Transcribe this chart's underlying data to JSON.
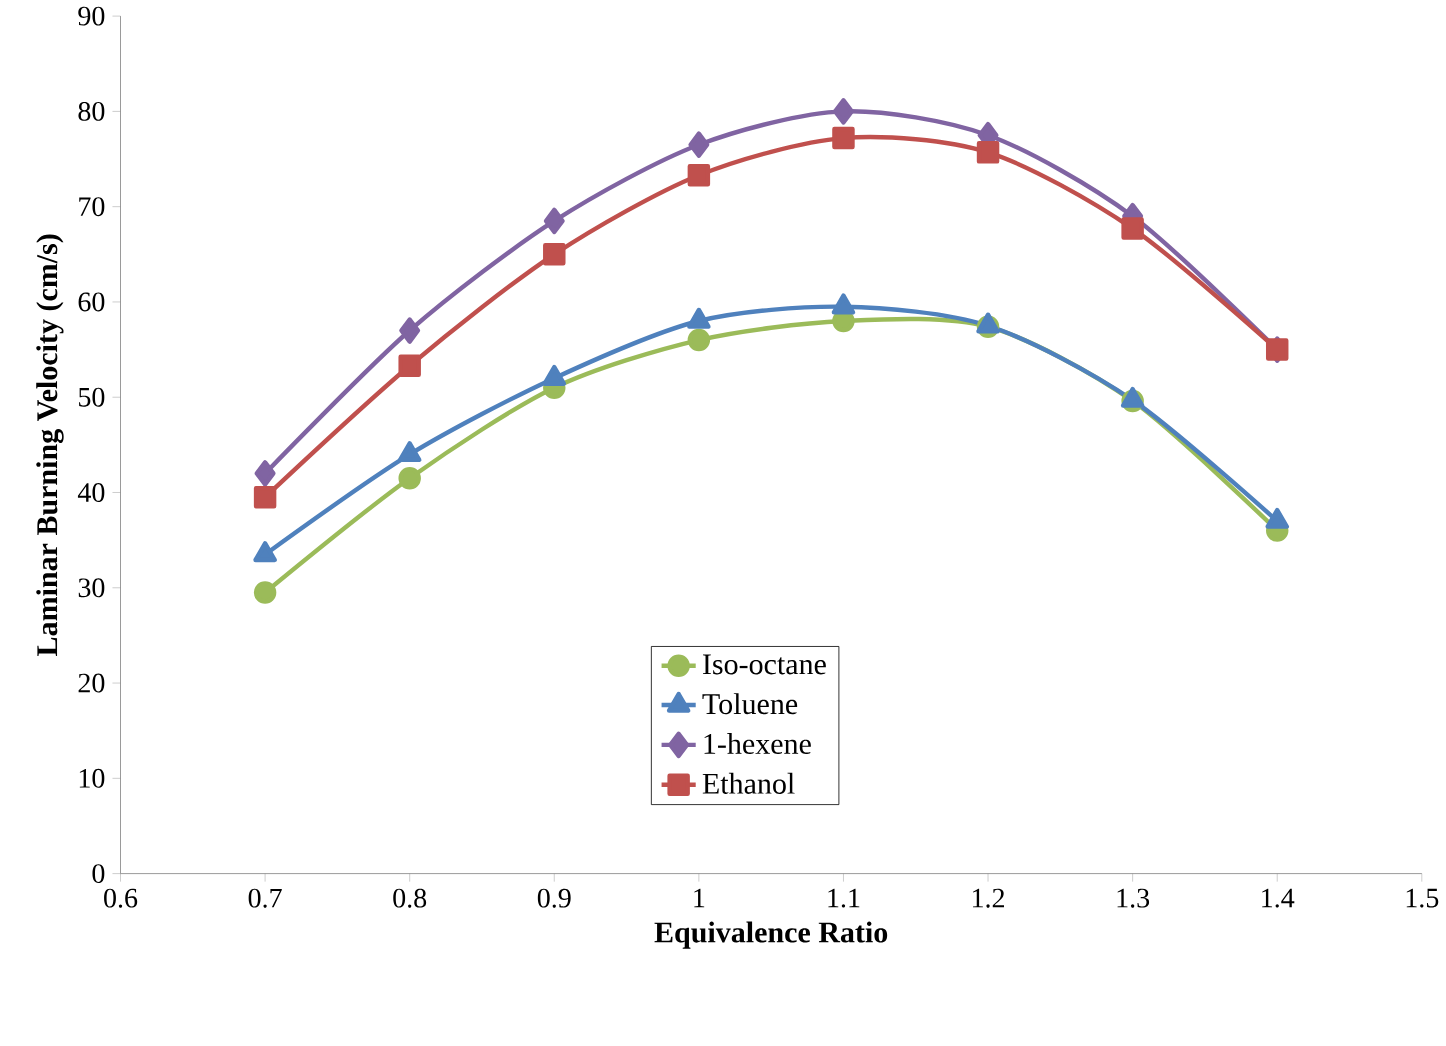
{
  "chart_data": {
    "type": "line",
    "xlabel": "Equivalence Ratio",
    "ylabel": "Laminar Burning Velocity (cm/s)",
    "x": [
      0.7,
      0.8,
      0.9,
      1.0,
      1.1,
      1.2,
      1.3,
      1.4
    ],
    "xlim": [
      0.6,
      1.5
    ],
    "xticks": [
      0.6,
      0.7,
      0.8,
      0.9,
      1,
      1.1,
      1.2,
      1.3,
      1.4,
      1.5
    ],
    "ylim": [
      0,
      90
    ],
    "yticks": [
      0,
      10,
      20,
      30,
      40,
      50,
      60,
      70,
      80,
      90
    ],
    "grid": false,
    "legend": "bottom",
    "line_style": "solid",
    "series": [
      {
        "name": "Iso-octane",
        "color": "#9bbb59",
        "marker": "circle",
        "values": [
          29.5,
          41.5,
          51,
          56,
          58,
          57.4,
          49.6,
          36
        ]
      },
      {
        "name": "Toluene",
        "color": "#4f81bd",
        "marker": "triangle",
        "values": [
          33.5,
          44,
          52,
          58,
          59.5,
          57.5,
          49.7,
          37
        ]
      },
      {
        "name": "1-hexene",
        "color": "#8064a2",
        "marker": "diamond",
        "values": [
          42,
          57,
          68.5,
          76.5,
          80,
          77.5,
          69,
          55
        ]
      },
      {
        "name": "Ethanol",
        "color": "#c0504d",
        "marker": "square",
        "values": [
          39.5,
          53.3,
          65,
          73.3,
          77.2,
          75.7,
          67.7,
          55
        ]
      }
    ]
  }
}
